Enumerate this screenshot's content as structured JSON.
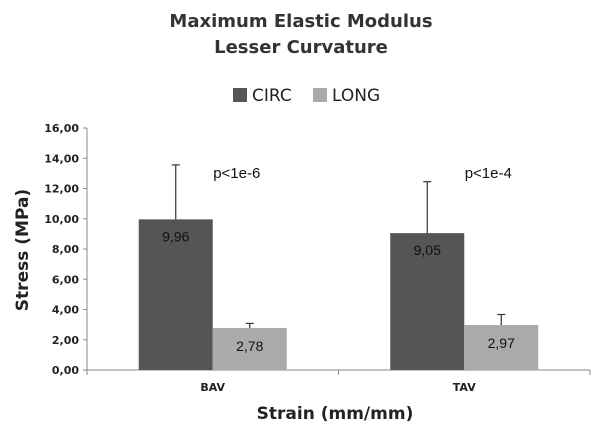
{
  "chart_data": {
    "type": "bar",
    "title": "Maximum Elastic Modulus",
    "subtitle": "Lesser Curvature",
    "xlabel": "Strain (mm/mm)",
    "ylabel": "Stress (MPa)",
    "categories": [
      "BAV",
      "TAV"
    ],
    "ylim": [
      0,
      16
    ],
    "yticks": [
      "0,00",
      "2,00",
      "4,00",
      "6,00",
      "8,00",
      "10,00",
      "12,00",
      "14,00",
      "16,00"
    ],
    "legend_position": "top",
    "grid": false,
    "series": [
      {
        "name": "CIRC",
        "color": "#555555",
        "values": [
          9.96,
          9.05
        ],
        "labels": [
          "9,96",
          "9,05"
        ],
        "errors": [
          3.6,
          3.4
        ]
      },
      {
        "name": "LONG",
        "color": "#aaaaaa",
        "values": [
          2.78,
          2.97
        ],
        "labels": [
          "2,78",
          "2,97"
        ],
        "errors": [
          0.3,
          0.7
        ]
      }
    ],
    "annotations": [
      "p<1e-6",
      "p<1e-4"
    ]
  }
}
